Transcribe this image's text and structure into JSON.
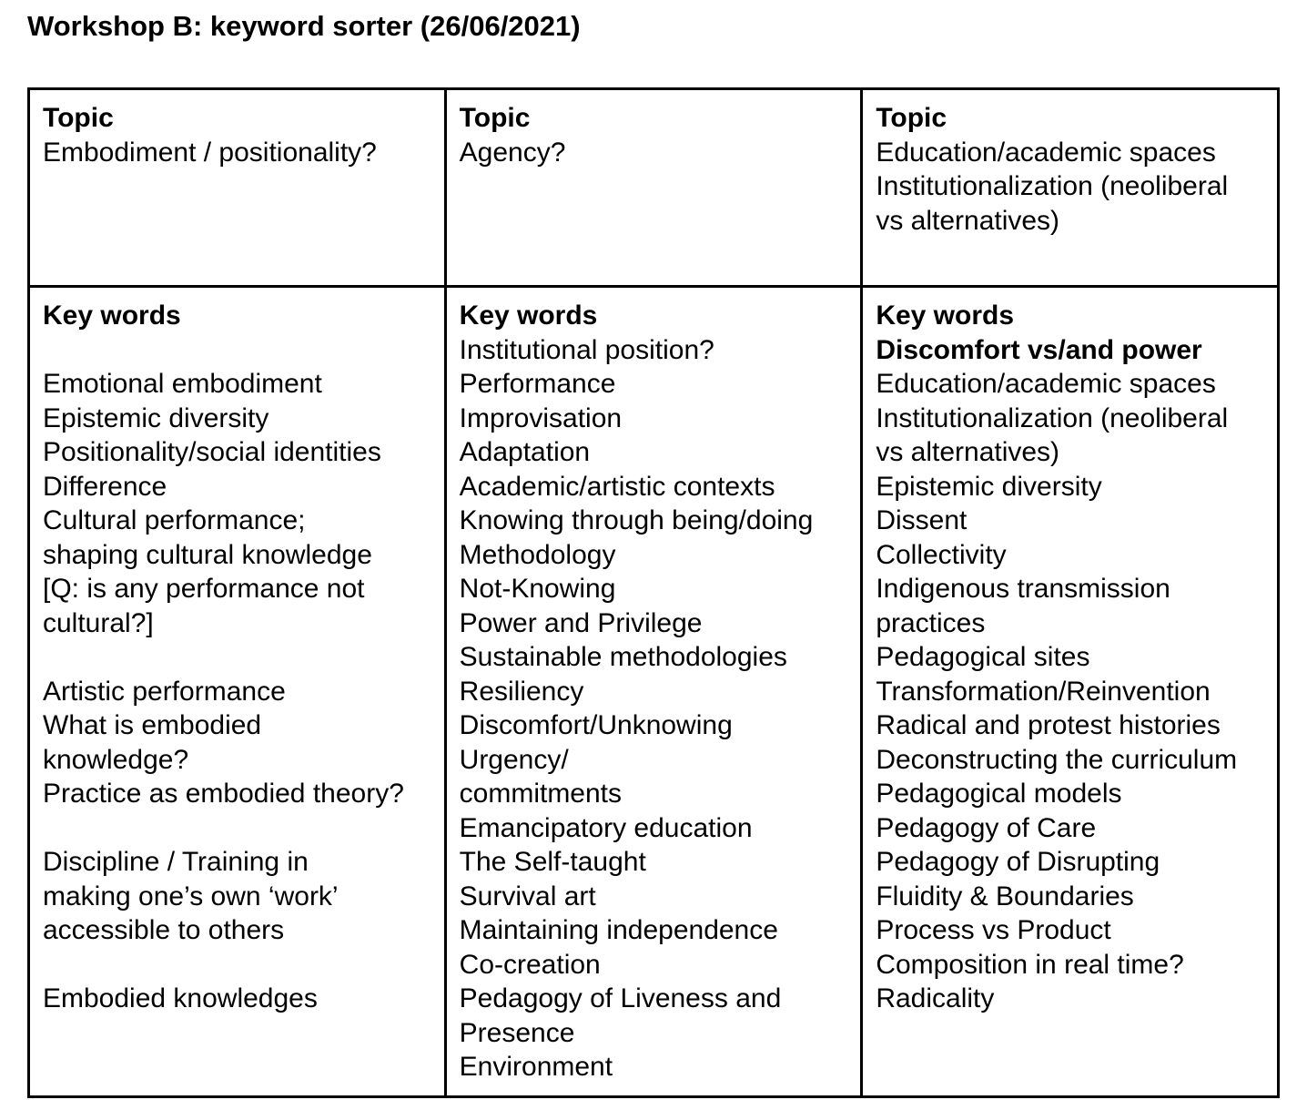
{
  "page_title": "Workshop B: keyword sorter (26/06/2021)",
  "table": {
    "columns": [
      {
        "topic_label": "Topic",
        "topic_lines": [
          "Embodiment / positionality?"
        ],
        "keywords_label": "Key words",
        "keywords_lines": [
          "",
          "Emotional embodiment",
          "Epistemic diversity",
          "Positionality/social identities",
          "Difference",
          "Cultural performance;",
          "shaping cultural knowledge",
          "[Q: is any performance not",
          "cultural?]",
          "",
          "Artistic performance",
          "What is embodied",
          "knowledge?",
          "Practice as embodied theory?",
          "",
          "Discipline / Training in",
          "making one’s own ‘work’",
          "accessible to others",
          "",
          "Embodied knowledges"
        ]
      },
      {
        "topic_label": "Topic",
        "topic_lines": [
          "Agency?"
        ],
        "keywords_label": "Key words",
        "keywords_lines": [
          "Institutional position?",
          "Performance",
          "Improvisation",
          "Adaptation",
          "Academic/artistic contexts",
          "Knowing through being/doing",
          "Methodology",
          "Not-Knowing",
          "Power and Privilege",
          "Sustainable methodologies",
          "Resiliency",
          "Discomfort/Unknowing",
          "Urgency/",
          "commitments",
          "Emancipatory education",
          "The Self-taught",
          "Survival art",
          "Maintaining independence",
          "Co-creation",
          "Pedagogy of Liveness and",
          "Presence",
          "Environment"
        ]
      },
      {
        "topic_label": "Topic",
        "topic_lines": [
          "Education/academic spaces",
          "Institutionalization (neoliberal",
          "vs alternatives)"
        ],
        "keywords_label": "Key words",
        "keywords_bold_line": "Discomfort vs/and power",
        "keywords_lines": [
          "Education/academic spaces",
          "Institutionalization (neoliberal",
          "vs alternatives)",
          "Epistemic diversity",
          "Dissent",
          "Collectivity",
          "Indigenous transmission",
          "practices",
          "Pedagogical sites",
          "Transformation/Reinvention",
          "Radical and protest histories",
          "Deconstructing the curriculum",
          "Pedagogical models",
          "Pedagogy of Care",
          "Pedagogy of Disrupting",
          "Fluidity & Boundaries",
          "Process vs Product",
          "Composition in real time?",
          "Radicality"
        ]
      }
    ]
  }
}
